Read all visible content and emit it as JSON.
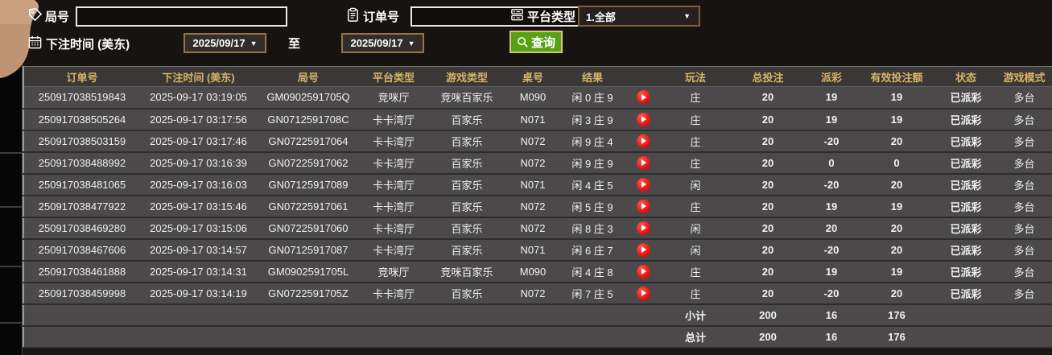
{
  "filters": {
    "game_no_label": "局号",
    "game_no_value": "",
    "order_no_label": "订单号",
    "order_no_value": "",
    "platform_type_label": "平台类型",
    "platform_type_value": "1.全部",
    "bet_time_label": "下注时间 (美东)",
    "date_from": "2025/09/17",
    "to_label": "至",
    "date_to": "2025/09/17",
    "search_label": "查询",
    "caret": "▼"
  },
  "table": {
    "headers": [
      "订单号",
      "下注时间 (美东)",
      "局号",
      "平台类型",
      "游戏类型",
      "桌号",
      "结果",
      "",
      "玩法",
      "总投注",
      "派彩",
      "有效投注额",
      "状态",
      "游戏模式"
    ],
    "rows": [
      {
        "order_no": "250917038519843",
        "bet_time": "2025-09-17 03:19:05",
        "game_no": "GM0902591705Q",
        "platform": "竞咪厅",
        "game_type": "竞咪百家乐",
        "table_no": "M090",
        "result": "闲 0 庄 9",
        "wager": "庄",
        "total_bet": "20",
        "payout": "19",
        "payout_class": "pos",
        "valid_bet": "19",
        "status": "已派彩",
        "mode": "多台"
      },
      {
        "order_no": "250917038505264",
        "bet_time": "2025-09-17 03:17:56",
        "game_no": "GN0712591708C",
        "platform": "卡卡湾厅",
        "game_type": "百家乐",
        "table_no": "N071",
        "result": "闲 3 庄 9",
        "wager": "庄",
        "total_bet": "20",
        "payout": "19",
        "payout_class": "pos",
        "valid_bet": "19",
        "status": "已派彩",
        "mode": "多台"
      },
      {
        "order_no": "250917038503159",
        "bet_time": "2025-09-17 03:17:46",
        "game_no": "GN07225917064",
        "platform": "卡卡湾厅",
        "game_type": "百家乐",
        "table_no": "N072",
        "result": "闲 9 庄 4",
        "wager": "庄",
        "total_bet": "20",
        "payout": "-20",
        "payout_class": "neg",
        "valid_bet": "20",
        "status": "已派彩",
        "mode": "多台"
      },
      {
        "order_no": "250917038488992",
        "bet_time": "2025-09-17 03:16:39",
        "game_no": "GN07225917062",
        "platform": "卡卡湾厅",
        "game_type": "百家乐",
        "table_no": "N072",
        "result": "闲 9 庄 9",
        "wager": "庄",
        "total_bet": "20",
        "payout": "0",
        "payout_class": "zero",
        "valid_bet": "0",
        "status": "已派彩",
        "mode": "多台"
      },
      {
        "order_no": "250917038481065",
        "bet_time": "2025-09-17 03:16:03",
        "game_no": "GN07125917089",
        "platform": "卡卡湾厅",
        "game_type": "百家乐",
        "table_no": "N071",
        "result": "闲 4 庄 5",
        "wager": "闲",
        "total_bet": "20",
        "payout": "-20",
        "payout_class": "neg",
        "valid_bet": "20",
        "status": "已派彩",
        "mode": "多台"
      },
      {
        "order_no": "250917038477922",
        "bet_time": "2025-09-17 03:15:46",
        "game_no": "GN07225917061",
        "platform": "卡卡湾厅",
        "game_type": "百家乐",
        "table_no": "N072",
        "result": "闲 5 庄 9",
        "wager": "庄",
        "total_bet": "20",
        "payout": "19",
        "payout_class": "pos",
        "valid_bet": "19",
        "status": "已派彩",
        "mode": "多台"
      },
      {
        "order_no": "250917038469280",
        "bet_time": "2025-09-17 03:15:06",
        "game_no": "GN07225917060",
        "platform": "卡卡湾厅",
        "game_type": "百家乐",
        "table_no": "N072",
        "result": "闲 8 庄 3",
        "wager": "闲",
        "total_bet": "20",
        "payout": "20",
        "payout_class": "pos",
        "valid_bet": "20",
        "status": "已派彩",
        "mode": "多台"
      },
      {
        "order_no": "250917038467606",
        "bet_time": "2025-09-17 03:14:57",
        "game_no": "GN07125917087",
        "platform": "卡卡湾厅",
        "game_type": "百家乐",
        "table_no": "N071",
        "result": "闲 6 庄 7",
        "wager": "闲",
        "total_bet": "20",
        "payout": "-20",
        "payout_class": "neg",
        "valid_bet": "20",
        "status": "已派彩",
        "mode": "多台"
      },
      {
        "order_no": "250917038461888",
        "bet_time": "2025-09-17 03:14:31",
        "game_no": "GM0902591705L",
        "platform": "竞咪厅",
        "game_type": "竞咪百家乐",
        "table_no": "M090",
        "result": "闲 4 庄 8",
        "wager": "庄",
        "total_bet": "20",
        "payout": "19",
        "payout_class": "pos",
        "valid_bet": "19",
        "status": "已派彩",
        "mode": "多台"
      },
      {
        "order_no": "250917038459998",
        "bet_time": "2025-09-17 03:14:19",
        "game_no": "GN0722591705Z",
        "platform": "卡卡湾厅",
        "game_type": "百家乐",
        "table_no": "N072",
        "result": "闲 7 庄 5",
        "wager": "庄",
        "total_bet": "20",
        "payout": "-20",
        "payout_class": "neg",
        "valid_bet": "20",
        "status": "已派彩",
        "mode": "多台"
      }
    ],
    "subtotal": {
      "label": "小计",
      "total_bet": "200",
      "payout": "16",
      "valid_bet": "176"
    },
    "total": {
      "label": "总计",
      "total_bet": "200",
      "payout": "16",
      "valid_bet": "176"
    }
  },
  "colors": {
    "header_text": "#d8b367",
    "payout_win": "#c41434",
    "payout_loss": "#5ad60f",
    "status_paid": "#2fd054",
    "totals": "#e3e312",
    "search_button": "#55a213",
    "row_bg": "#4b4949",
    "page_bg": "#171310",
    "tab_tan": "#c9a182"
  },
  "icons": {
    "game_no": "tag-icon",
    "order_no": "clipboard-icon",
    "platform": "stack-icon",
    "bet_time": "calendar-icon",
    "search": "search-icon",
    "row_action": "play-icon"
  }
}
